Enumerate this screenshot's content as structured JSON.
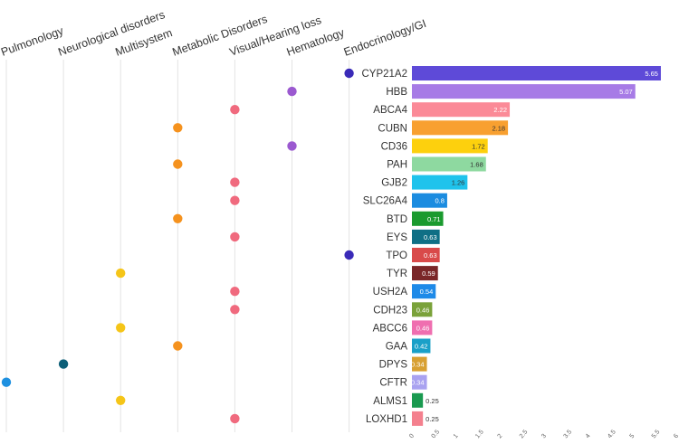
{
  "chart_data": {
    "type": "bar",
    "title": "",
    "xlabel": "",
    "ylabel": "",
    "xlim": [
      0,
      6
    ],
    "ticks": [
      "0",
      "0.5",
      "1",
      "1.5",
      "2",
      "2.5",
      "3",
      "3.5",
      "4",
      "4.5",
      "5",
      "5.5",
      "6"
    ],
    "categories_axis": [
      "Pulmonology",
      "Neurological disorders",
      "Multisystem",
      "Metabolic Disorders",
      "Visual/Hearing loss",
      "Hematology",
      "Endocrinology/GI"
    ],
    "category_colors": {
      "Pulmonology": "#1e90e0",
      "Neurological disorders": "#0d5f78",
      "Multisystem": "#f5c518",
      "Metabolic Disorders": "#f5921e",
      "Visual/Hearing loss": "#f06a7e",
      "Hematology": "#9b59d0",
      "Endocrinology/GI": "#3a2ab8"
    },
    "genes": [
      {
        "gene": "CYP21A2",
        "value": 5.65,
        "label": "5.65",
        "category": "Endocrinology/GI",
        "color": "#5e4ad8",
        "label_color": "#ffffff"
      },
      {
        "gene": "HBB",
        "value": 5.07,
        "label": "5.07",
        "category": "Hematology",
        "color": "#a77be6",
        "label_color": "#ffffff"
      },
      {
        "gene": "ABCA4",
        "value": 2.22,
        "label": "2.22",
        "category": "Visual/Hearing loss",
        "color": "#fb8a97",
        "label_color": "#ffffff"
      },
      {
        "gene": "CUBN",
        "value": 2.18,
        "label": "2.18",
        "category": "Metabolic Disorders",
        "color": "#f8a030",
        "label_color": "#333333"
      },
      {
        "gene": "CD36",
        "value": 1.72,
        "label": "1.72",
        "category": "Hematology",
        "color": "#fdd00d",
        "label_color": "#333333"
      },
      {
        "gene": "PAH",
        "value": 1.68,
        "label": "1.68",
        "category": "Metabolic Disorders",
        "color": "#8ed9a0",
        "label_color": "#333333"
      },
      {
        "gene": "GJB2",
        "value": 1.26,
        "label": "1.26",
        "category": "Visual/Hearing loss",
        "color": "#1fc3ec",
        "label_color": "#333333"
      },
      {
        "gene": "SLC26A4",
        "value": 0.8,
        "label": "0.8",
        "category": "Visual/Hearing loss",
        "color": "#1b8ce0",
        "label_color": "#ffffff"
      },
      {
        "gene": "BTD",
        "value": 0.71,
        "label": "0.71",
        "category": "Metabolic Disorders",
        "color": "#1a9a2e",
        "label_color": "#ffffff"
      },
      {
        "gene": "EYS",
        "value": 0.63,
        "label": "0.63",
        "category": "Visual/Hearing loss",
        "color": "#0f6f85",
        "label_color": "#ffffff"
      },
      {
        "gene": "TPO",
        "value": 0.63,
        "label": "0.63",
        "category": "Endocrinology/GI",
        "color": "#d94a4a",
        "label_color": "#ffffff"
      },
      {
        "gene": "TYR",
        "value": 0.59,
        "label": "0.59",
        "category": "Multisystem",
        "color": "#7a2628",
        "label_color": "#ffffff"
      },
      {
        "gene": "USH2A",
        "value": 0.54,
        "label": "0.54",
        "category": "Visual/Hearing loss",
        "color": "#1e8ae8",
        "label_color": "#ffffff"
      },
      {
        "gene": "CDH23",
        "value": 0.46,
        "label": "0.46",
        "category": "Visual/Hearing loss",
        "color": "#7aa23a",
        "label_color": "#ffffff"
      },
      {
        "gene": "ABCC6",
        "value": 0.46,
        "label": "0.46",
        "category": "Multisystem",
        "color": "#ef6fb0",
        "label_color": "#ffffff"
      },
      {
        "gene": "GAA",
        "value": 0.42,
        "label": "0.42",
        "category": "Metabolic Disorders",
        "color": "#1aa0c8",
        "label_color": "#ffffff"
      },
      {
        "gene": "DPYS",
        "value": 0.34,
        "label": "0.34",
        "category": "Neurological disorders",
        "color": "#d8a032",
        "label_color": "#ffffff"
      },
      {
        "gene": "CFTR",
        "value": 0.34,
        "label": "0.34",
        "category": "Pulmonology",
        "color": "#a9a2f0",
        "label_color": "#ffffff"
      },
      {
        "gene": "ALMS1",
        "value": 0.25,
        "label": "0.25",
        "category": "Multisystem",
        "color": "#1a9a50",
        "label_color": "#333333"
      },
      {
        "gene": "LOXHD1",
        "value": 0.25,
        "label": "0.25",
        "category": "Visual/Hearing loss",
        "color": "#f4808e",
        "label_color": "#333333"
      }
    ]
  }
}
